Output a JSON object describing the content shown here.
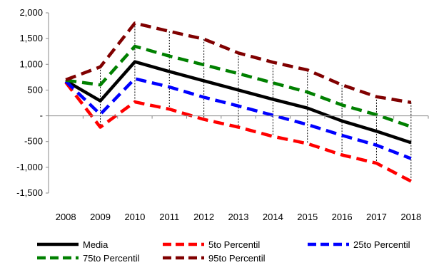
{
  "chart_data": {
    "type": "line",
    "title": "",
    "xlabel": "",
    "ylabel": "",
    "x": [
      "2008",
      "2009",
      "2010",
      "2011",
      "2012",
      "2013",
      "2014",
      "2015",
      "2016",
      "2017",
      "2018"
    ],
    "ylim": [
      -1500,
      2000
    ],
    "yticks": [
      -1500,
      -1000,
      -500,
      0,
      500,
      1000,
      1500,
      2000
    ],
    "ytick_labels": [
      "-1,500",
      "-1,000",
      "-500",
      "-",
      "500",
      "1,000",
      "1,500",
      "2,000"
    ],
    "grid": false,
    "drop_lines": true,
    "legend_position": "bottom",
    "series": [
      {
        "name": "Media",
        "color": "#000000",
        "style": "solid",
        "values": [
          680,
          290,
          1050,
          860,
          680,
          500,
          320,
          150,
          -100,
          -300,
          -520
        ]
      },
      {
        "name": "5to Percentil",
        "color": "#ff0000",
        "style": "dashed",
        "values": [
          650,
          -220,
          270,
          130,
          -70,
          -220,
          -400,
          -540,
          -760,
          -920,
          -1270
        ]
      },
      {
        "name": "25to Percentil",
        "color": "#0000ff",
        "style": "dashed",
        "values": [
          670,
          30,
          720,
          560,
          360,
          190,
          10,
          -170,
          -380,
          -570,
          -830
        ]
      },
      {
        "name": "75to Percentil",
        "color": "#008000",
        "style": "dashed",
        "values": [
          690,
          600,
          1350,
          1160,
          990,
          820,
          640,
          460,
          210,
          20,
          -210
        ]
      },
      {
        "name": "95to Percentil",
        "color": "#800000",
        "style": "dashed",
        "values": [
          700,
          950,
          1800,
          1640,
          1490,
          1220,
          1040,
          890,
          600,
          370,
          260
        ]
      }
    ]
  }
}
